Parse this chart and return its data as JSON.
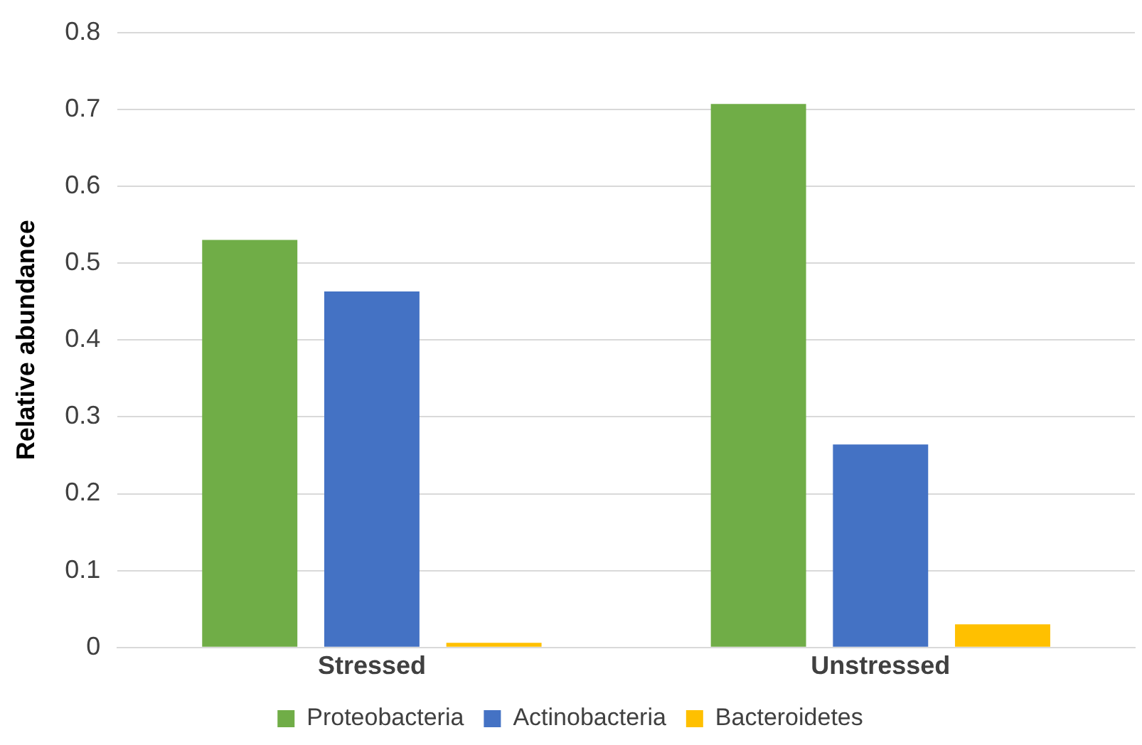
{
  "chart_data": {
    "type": "bar",
    "ylabel": "Relative abundance",
    "categories": [
      "Stressed",
      "Unstressed"
    ],
    "series": [
      {
        "name": "Proteobacteria",
        "color": "#70ad47",
        "values": [
          0.53,
          0.707
        ]
      },
      {
        "name": "Actinobacteria",
        "color": "#4472c4",
        "values": [
          0.463,
          0.264
        ]
      },
      {
        "name": "Bacteroidetes",
        "color": "#ffc000",
        "values": [
          0.006,
          0.03
        ]
      }
    ],
    "ylim": [
      0,
      0.8
    ],
    "yticks": [
      0,
      0.1,
      0.2,
      0.3,
      0.4,
      0.5,
      0.6,
      0.7,
      0.8
    ],
    "grid": "y",
    "legend": "bottom"
  }
}
